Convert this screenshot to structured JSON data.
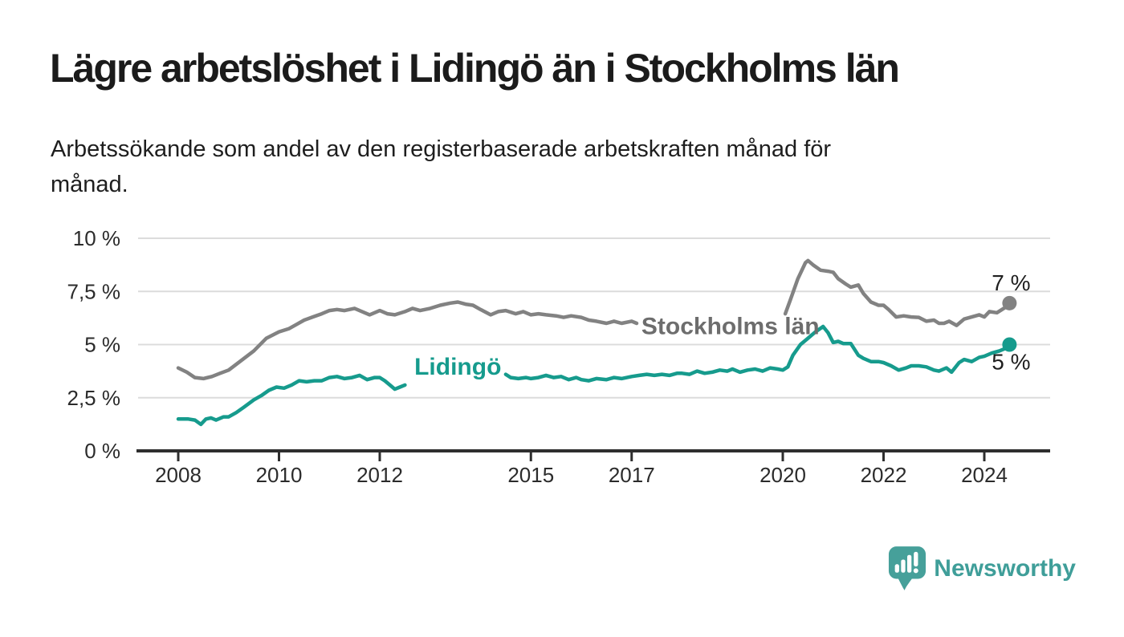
{
  "header": {
    "title": "Lägre arbetslöshet i Lidingö än i Stockholms län",
    "subtitle_lines": [
      "Arbetssökande som andel av den registerbaserade arbetskraften månad för",
      "månad."
    ]
  },
  "footer": {
    "brand": "Newsworthy",
    "brand_color": "#3f9e99",
    "logo_icon": "newsworthy-speech-bubble-bar-chart-icon"
  },
  "chart_data": {
    "type": "line",
    "unit": "%",
    "colors": {
      "grid": "#dcdcdc",
      "axis": "#2e2e2e",
      "tick_text": "#2b2b2b",
      "end_label_text": "#1f1f1f"
    },
    "x_axis": {
      "ticks": [
        2008,
        2010,
        2012,
        2015,
        2017,
        2020,
        2022,
        2024
      ],
      "range": [
        2007.2,
        2025.4
      ],
      "grid": false
    },
    "y_axis": {
      "tick_values": [
        10,
        7.5,
        5,
        2.5,
        0
      ],
      "tick_labels": [
        "10 %",
        "7,5 %",
        "5 %",
        "2,5 %",
        "0 %"
      ],
      "range": [
        0,
        10
      ],
      "grid": true
    },
    "series": [
      {
        "id": "stockholms-lan",
        "name": "Stockholms län",
        "color": "#828282",
        "label_color": "#6d6d6d",
        "label": {
          "year": 2018.96,
          "value": 5.85
        },
        "end_point": [
          2024.5,
          6.95
        ],
        "end_label": "7 %",
        "end_label_position": "above",
        "segments": [
          [
            [
              2008.0,
              3.9
            ],
            [
              2008.17,
              3.7
            ],
            [
              2008.33,
              3.45
            ],
            [
              2008.5,
              3.4
            ],
            [
              2008.67,
              3.5
            ],
            [
              2008.83,
              3.65
            ],
            [
              2009.0,
              3.8
            ],
            [
              2009.25,
              4.25
            ],
            [
              2009.5,
              4.7
            ],
            [
              2009.75,
              5.3
            ],
            [
              2010.0,
              5.6
            ],
            [
              2010.2,
              5.75
            ],
            [
              2010.35,
              5.95
            ],
            [
              2010.5,
              6.15
            ],
            [
              2010.67,
              6.3
            ],
            [
              2010.85,
              6.45
            ],
            [
              2011.0,
              6.6
            ],
            [
              2011.15,
              6.65
            ],
            [
              2011.3,
              6.6
            ],
            [
              2011.5,
              6.7
            ],
            [
              2011.65,
              6.55
            ],
            [
              2011.8,
              6.4
            ],
            [
              2012.0,
              6.6
            ],
            [
              2012.15,
              6.45
            ],
            [
              2012.3,
              6.4
            ],
            [
              2012.5,
              6.55
            ],
            [
              2012.65,
              6.7
            ],
            [
              2012.8,
              6.6
            ],
            [
              2013.0,
              6.7
            ],
            [
              2013.2,
              6.85
            ],
            [
              2013.4,
              6.95
            ],
            [
              2013.55,
              7.0
            ],
            [
              2013.7,
              6.9
            ],
            [
              2013.85,
              6.85
            ],
            [
              2014.0,
              6.65
            ],
            [
              2014.2,
              6.4
            ],
            [
              2014.35,
              6.55
            ],
            [
              2014.5,
              6.6
            ],
            [
              2014.7,
              6.45
            ],
            [
              2014.85,
              6.55
            ],
            [
              2015.0,
              6.4
            ],
            [
              2015.15,
              6.45
            ],
            [
              2015.3,
              6.4
            ],
            [
              2015.5,
              6.35
            ],
            [
              2015.65,
              6.28
            ],
            [
              2015.8,
              6.35
            ],
            [
              2016.0,
              6.28
            ],
            [
              2016.15,
              6.15
            ],
            [
              2016.3,
              6.1
            ],
            [
              2016.5,
              6.0
            ],
            [
              2016.65,
              6.1
            ],
            [
              2016.8,
              6.0
            ],
            [
              2017.0,
              6.1
            ],
            [
              2017.1,
              6.0
            ]
          ],
          [
            [
              2020.05,
              6.45
            ],
            [
              2020.15,
              7.1
            ],
            [
              2020.3,
              8.1
            ],
            [
              2020.45,
              8.85
            ],
            [
              2020.5,
              8.95
            ],
            [
              2020.6,
              8.75
            ],
            [
              2020.75,
              8.5
            ],
            [
              2020.9,
              8.45
            ],
            [
              2021.0,
              8.4
            ],
            [
              2021.1,
              8.1
            ],
            [
              2021.25,
              7.85
            ],
            [
              2021.35,
              7.7
            ],
            [
              2021.5,
              7.8
            ],
            [
              2021.6,
              7.4
            ],
            [
              2021.75,
              7.0
            ],
            [
              2021.9,
              6.85
            ],
            [
              2022.0,
              6.85
            ],
            [
              2022.1,
              6.65
            ],
            [
              2022.25,
              6.3
            ],
            [
              2022.4,
              6.35
            ],
            [
              2022.55,
              6.3
            ],
            [
              2022.7,
              6.28
            ],
            [
              2022.85,
              6.1
            ],
            [
              2023.0,
              6.15
            ],
            [
              2023.1,
              6.0
            ],
            [
              2023.2,
              6.0
            ],
            [
              2023.3,
              6.1
            ],
            [
              2023.45,
              5.9
            ],
            [
              2023.6,
              6.2
            ],
            [
              2023.75,
              6.3
            ],
            [
              2023.9,
              6.4
            ],
            [
              2024.0,
              6.3
            ],
            [
              2024.1,
              6.55
            ],
            [
              2024.25,
              6.5
            ],
            [
              2024.35,
              6.65
            ],
            [
              2024.45,
              6.8
            ],
            [
              2024.5,
              6.95
            ]
          ]
        ]
      },
      {
        "id": "lidingo",
        "name": "Lidingö",
        "color": "#169b8d",
        "label_color": "#169b8d",
        "label": {
          "year": 2013.55,
          "value": 3.95
        },
        "end_point": [
          2024.5,
          5.0
        ],
        "end_label": "5 %",
        "end_label_position": "below",
        "segments": [
          [
            [
              2008.0,
              1.5
            ],
            [
              2008.2,
              1.5
            ],
            [
              2008.33,
              1.45
            ],
            [
              2008.45,
              1.25
            ],
            [
              2008.55,
              1.5
            ],
            [
              2008.65,
              1.55
            ],
            [
              2008.75,
              1.45
            ],
            [
              2008.9,
              1.6
            ],
            [
              2009.0,
              1.6
            ],
            [
              2009.15,
              1.8
            ],
            [
              2009.3,
              2.05
            ],
            [
              2009.5,
              2.4
            ],
            [
              2009.65,
              2.6
            ],
            [
              2009.8,
              2.85
            ],
            [
              2009.95,
              3.0
            ],
            [
              2010.1,
              2.95
            ],
            [
              2010.25,
              3.1
            ],
            [
              2010.4,
              3.3
            ],
            [
              2010.55,
              3.25
            ],
            [
              2010.7,
              3.3
            ],
            [
              2010.85,
              3.3
            ],
            [
              2011.0,
              3.45
            ],
            [
              2011.15,
              3.5
            ],
            [
              2011.3,
              3.4
            ],
            [
              2011.45,
              3.45
            ],
            [
              2011.6,
              3.55
            ],
            [
              2011.75,
              3.35
            ],
            [
              2011.9,
              3.45
            ],
            [
              2012.0,
              3.45
            ],
            [
              2012.1,
              3.3
            ],
            [
              2012.2,
              3.1
            ],
            [
              2012.3,
              2.9
            ],
            [
              2012.4,
              3.0
            ],
            [
              2012.5,
              3.1
            ]
          ],
          [
            [
              2014.5,
              3.6
            ],
            [
              2014.6,
              3.45
            ],
            [
              2014.75,
              3.4
            ],
            [
              2014.9,
              3.45
            ],
            [
              2015.0,
              3.4
            ],
            [
              2015.15,
              3.45
            ],
            [
              2015.3,
              3.55
            ],
            [
              2015.45,
              3.45
            ],
            [
              2015.6,
              3.5
            ],
            [
              2015.75,
              3.35
            ],
            [
              2015.9,
              3.45
            ],
            [
              2016.0,
              3.35
            ],
            [
              2016.15,
              3.3
            ],
            [
              2016.3,
              3.4
            ],
            [
              2016.5,
              3.35
            ],
            [
              2016.65,
              3.45
            ],
            [
              2016.8,
              3.4
            ],
            [
              2017.0,
              3.5
            ],
            [
              2017.15,
              3.55
            ],
            [
              2017.3,
              3.6
            ],
            [
              2017.45,
              3.55
            ],
            [
              2017.6,
              3.6
            ],
            [
              2017.75,
              3.55
            ],
            [
              2017.9,
              3.65
            ],
            [
              2018.0,
              3.65
            ],
            [
              2018.15,
              3.6
            ],
            [
              2018.3,
              3.75
            ],
            [
              2018.45,
              3.65
            ],
            [
              2018.6,
              3.7
            ],
            [
              2018.75,
              3.8
            ],
            [
              2018.9,
              3.75
            ],
            [
              2019.0,
              3.85
            ],
            [
              2019.15,
              3.7
            ],
            [
              2019.3,
              3.8
            ],
            [
              2019.45,
              3.85
            ],
            [
              2019.6,
              3.75
            ],
            [
              2019.75,
              3.9
            ],
            [
              2019.9,
              3.85
            ],
            [
              2020.0,
              3.8
            ],
            [
              2020.1,
              3.95
            ],
            [
              2020.2,
              4.5
            ],
            [
              2020.35,
              5.0
            ],
            [
              2020.5,
              5.3
            ],
            [
              2020.65,
              5.6
            ],
            [
              2020.8,
              5.85
            ],
            [
              2020.9,
              5.55
            ],
            [
              2021.0,
              5.1
            ],
            [
              2021.1,
              5.15
            ],
            [
              2021.2,
              5.05
            ],
            [
              2021.35,
              5.05
            ],
            [
              2021.5,
              4.5
            ],
            [
              2021.6,
              4.35
            ],
            [
              2021.75,
              4.2
            ],
            [
              2021.9,
              4.2
            ],
            [
              2022.0,
              4.15
            ],
            [
              2022.15,
              4.0
            ],
            [
              2022.3,
              3.8
            ],
            [
              2022.45,
              3.9
            ],
            [
              2022.55,
              4.0
            ],
            [
              2022.7,
              4.0
            ],
            [
              2022.85,
              3.95
            ],
            [
              2023.0,
              3.8
            ],
            [
              2023.1,
              3.75
            ],
            [
              2023.25,
              3.9
            ],
            [
              2023.35,
              3.7
            ],
            [
              2023.5,
              4.15
            ],
            [
              2023.6,
              4.3
            ],
            [
              2023.75,
              4.2
            ],
            [
              2023.9,
              4.4
            ],
            [
              2024.0,
              4.45
            ],
            [
              2024.15,
              4.6
            ],
            [
              2024.3,
              4.7
            ],
            [
              2024.4,
              4.8
            ],
            [
              2024.5,
              5.0
            ]
          ]
        ]
      }
    ]
  }
}
